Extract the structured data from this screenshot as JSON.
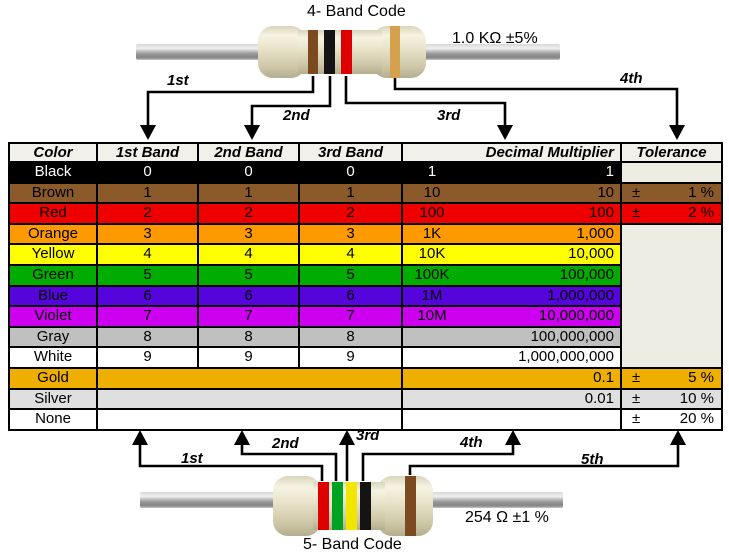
{
  "top_resistor": {
    "title": "4- Band Code",
    "value_label": "1.0 KΩ  ±5%",
    "bands": [
      {
        "name": "brown",
        "color": "#7B4A21"
      },
      {
        "name": "black",
        "color": "#141414"
      },
      {
        "name": "red",
        "color": "#DE0000"
      },
      {
        "name": "gold",
        "color": "#D4A24C"
      }
    ],
    "arrow_labels": [
      "1st",
      "2nd",
      "3rd",
      "4th"
    ]
  },
  "bottom_resistor": {
    "title": "5- Band Code",
    "value_label": "254 Ω  ±1 %",
    "bands": [
      {
        "name": "red",
        "color": "#DE0000"
      },
      {
        "name": "green",
        "color": "#00A221"
      },
      {
        "name": "yellow",
        "color": "#F2E500"
      },
      {
        "name": "black",
        "color": "#141414"
      },
      {
        "name": "brown",
        "color": "#7B4A21"
      }
    ],
    "arrow_labels": [
      "1st",
      "2nd",
      "3rd",
      "4th",
      "5th"
    ]
  },
  "table": {
    "headers": [
      "Color",
      "1st Band",
      "2nd Band",
      "3rd Band",
      "Decimal Multiplier",
      "Tolerance"
    ],
    "header_bg": "#F1F0E9",
    "tolerance_empty_bg": "#EEEDE3",
    "plus_minus": "±",
    "rows": [
      {
        "name": "Black",
        "bg": "#000000",
        "fg": "#FFFFFF",
        "b1": "0",
        "b2": "0",
        "b3": "0",
        "ms": "1",
        "mf": "1",
        "tol": "",
        "tol_cell": "empty",
        "bands_merged": false
      },
      {
        "name": "Brown",
        "bg": "#8B5A2B",
        "fg": "#000000",
        "b1": "1",
        "b2": "1",
        "b3": "1",
        "ms": "10",
        "mf": "10",
        "tol": "1 %",
        "tol_cell": "own",
        "bands_merged": false
      },
      {
        "name": "Red",
        "bg": "#EE0000",
        "fg": "#000000",
        "b1": "2",
        "b2": "2",
        "b3": "2",
        "ms": "100",
        "mf": "100",
        "tol": "2 %",
        "tol_cell": "own",
        "bands_merged": false
      },
      {
        "name": "Orange",
        "bg": "#FF9900",
        "fg": "#000000",
        "b1": "3",
        "b2": "3",
        "b3": "3",
        "ms": "1K",
        "mf": "1,000",
        "tol": "",
        "tol_cell": "merged",
        "bands_merged": false
      },
      {
        "name": "Yellow",
        "bg": "#FFFF00",
        "fg": "#000000",
        "b1": "4",
        "b2": "4",
        "b3": "4",
        "ms": "10K",
        "mf": "10,000",
        "tol": "",
        "tol_cell": "skip",
        "bands_merged": false
      },
      {
        "name": "Green",
        "bg": "#00AC00",
        "fg": "#000000",
        "b1": "5",
        "b2": "5",
        "b3": "5",
        "ms": "100K",
        "mf": "100,000",
        "tol": "",
        "tol_cell": "skip",
        "bands_merged": false
      },
      {
        "name": "Blue",
        "bg": "#5505DB",
        "fg": "#000000",
        "b1": "6",
        "b2": "6",
        "b3": "6",
        "ms": "1M",
        "mf": "1,000,000",
        "tol": "",
        "tol_cell": "skip",
        "bands_merged": false
      },
      {
        "name": "Violet",
        "bg": "#CC00EE",
        "fg": "#000000",
        "b1": "7",
        "b2": "7",
        "b3": "7",
        "ms": "10M",
        "mf": "10,000,000",
        "tol": "",
        "tol_cell": "skip",
        "bands_merged": false
      },
      {
        "name": "Gray",
        "bg": "#C0C0C0",
        "fg": "#000000",
        "b1": "8",
        "b2": "8",
        "b3": "8",
        "ms": "",
        "mf": "100,000,000",
        "tol": "",
        "tol_cell": "skip",
        "bands_merged": false
      },
      {
        "name": "White",
        "bg": "#FFFFFF",
        "fg": "#000000",
        "b1": "9",
        "b2": "9",
        "b3": "9",
        "ms": "",
        "mf": "1,000,000,000",
        "tol": "",
        "tol_cell": "skip",
        "bands_merged": false
      },
      {
        "name": "Gold",
        "bg": "#EFAF00",
        "fg": "#000000",
        "b1": "",
        "b2": "",
        "b3": "",
        "ms": "",
        "mf": "0.1",
        "tol": "5 %",
        "tol_cell": "own",
        "bands_merged": true
      },
      {
        "name": "Silver",
        "bg": "#DFDFDF",
        "fg": "#000000",
        "b1": "",
        "b2": "",
        "b3": "",
        "ms": "",
        "mf": "0.01",
        "tol": "10 %",
        "tol_cell": "own",
        "bands_merged": true
      },
      {
        "name": "None",
        "bg": "#FFFFFF",
        "fg": "#000000",
        "b1": "",
        "b2": "",
        "b3": "",
        "ms": "",
        "mf": "",
        "tol": "20 %",
        "tol_cell": "own",
        "bands_merged": true
      }
    ]
  }
}
